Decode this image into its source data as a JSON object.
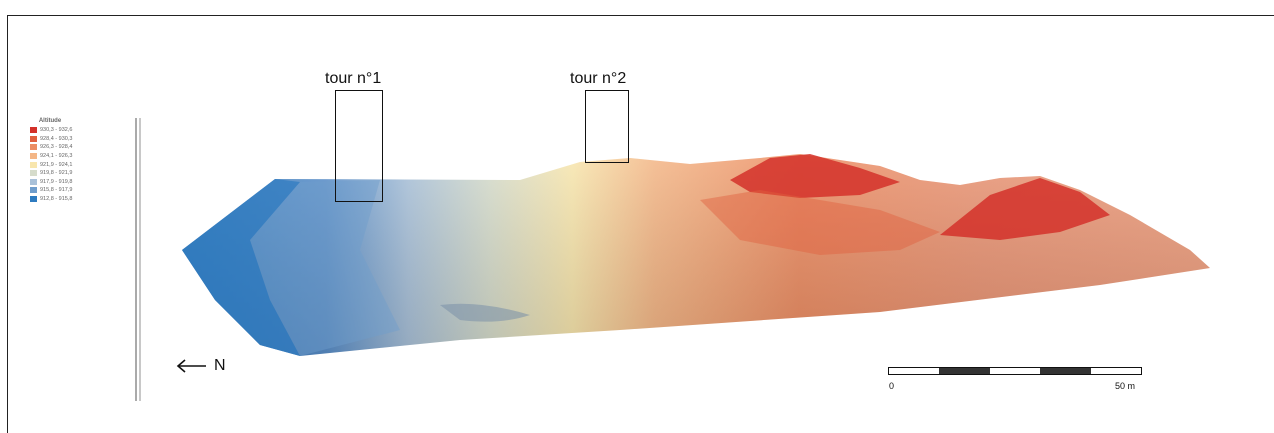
{
  "legend": {
    "title": "Altitude",
    "classes": [
      {
        "label": "930,3 - 932,6",
        "color": "#d3312a"
      },
      {
        "label": "928,4 - 930,3",
        "color": "#e0603f"
      },
      {
        "label": "926,3 - 928,4",
        "color": "#ec8d63"
      },
      {
        "label": "924,1 - 926,3",
        "color": "#f4b686"
      },
      {
        "label": "921,9 - 924,1",
        "color": "#f8e6ad"
      },
      {
        "label": "919,8 - 921,9",
        "color": "#d6dccb"
      },
      {
        "label": "917,9 - 919,8",
        "color": "#a9c1d9"
      },
      {
        "label": "915,8 - 917,9",
        "color": "#6f9dcc"
      },
      {
        "label": "912,8 - 915,8",
        "color": "#2e7bc0"
      }
    ]
  },
  "towers": [
    {
      "label": "tour n°1"
    },
    {
      "label": "tour n°2"
    }
  ],
  "north": {
    "label": "N"
  },
  "scale": {
    "start_label": "0",
    "end_label": "50 m"
  }
}
